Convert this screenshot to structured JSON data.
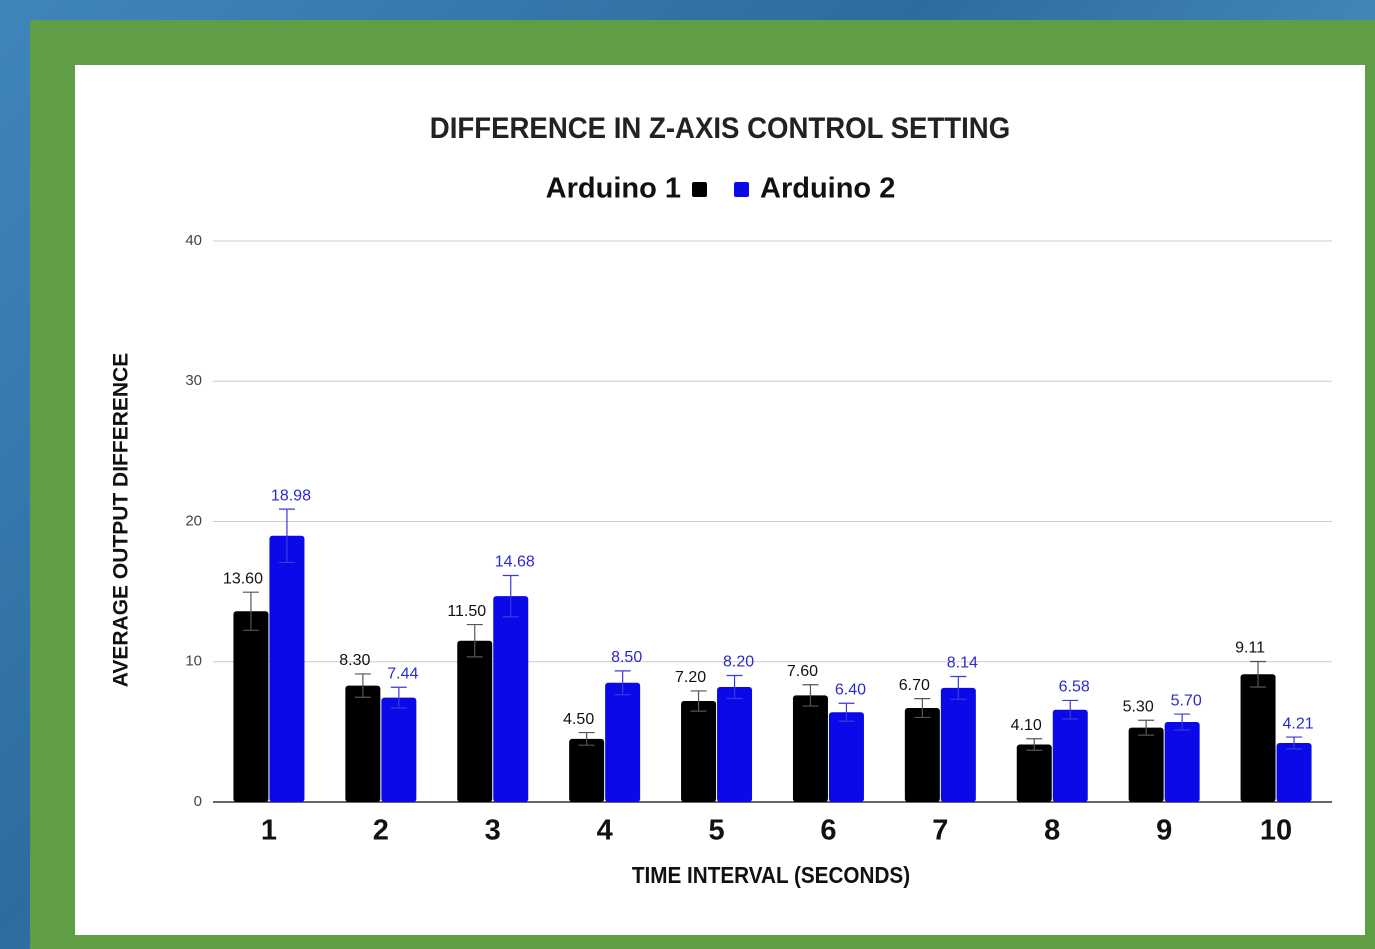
{
  "chart_data": {
    "type": "bar",
    "title": "DIFFERENCE IN Z-AXIS CONTROL SETTING",
    "xlabel": "TIME INTERVAL (SECONDS)",
    "ylabel": "AVERAGE OUTPUT DIFFERENCE",
    "categories": [
      "1",
      "2",
      "3",
      "4",
      "5",
      "6",
      "7",
      "8",
      "9",
      "10"
    ],
    "series": [
      {
        "name": "Arduino 1",
        "color": "#000000",
        "label_color": "#111111",
        "values": [
          13.6,
          8.3,
          11.5,
          4.5,
          7.2,
          7.6,
          6.7,
          4.1,
          5.3,
          9.11
        ],
        "errors": [
          1.36,
          0.83,
          1.15,
          0.45,
          0.72,
          0.76,
          0.67,
          0.41,
          0.53,
          0.91
        ],
        "value_labels": [
          "13.60",
          "8.30",
          "11.50",
          "4.50",
          "7.20",
          "7.60",
          "6.70",
          "4.10",
          "5.30",
          "9.11"
        ]
      },
      {
        "name": "Arduino 2",
        "color": "#0a0ae8",
        "label_color": "#2a2ad0",
        "values": [
          18.98,
          7.44,
          14.68,
          8.5,
          8.2,
          6.4,
          8.14,
          6.58,
          5.7,
          4.21
        ],
        "errors": [
          1.9,
          0.74,
          1.47,
          0.85,
          0.82,
          0.64,
          0.81,
          0.66,
          0.57,
          0.42
        ],
        "value_labels": [
          "18.98",
          "7.44",
          "14.68",
          "8.50",
          "8.20",
          "6.40",
          "8.14",
          "6.58",
          "5.70",
          "4.21"
        ]
      }
    ],
    "ylim": [
      0,
      40
    ],
    "yticks": [
      0,
      10,
      20,
      30,
      40
    ],
    "grid": true,
    "legend": "top"
  }
}
